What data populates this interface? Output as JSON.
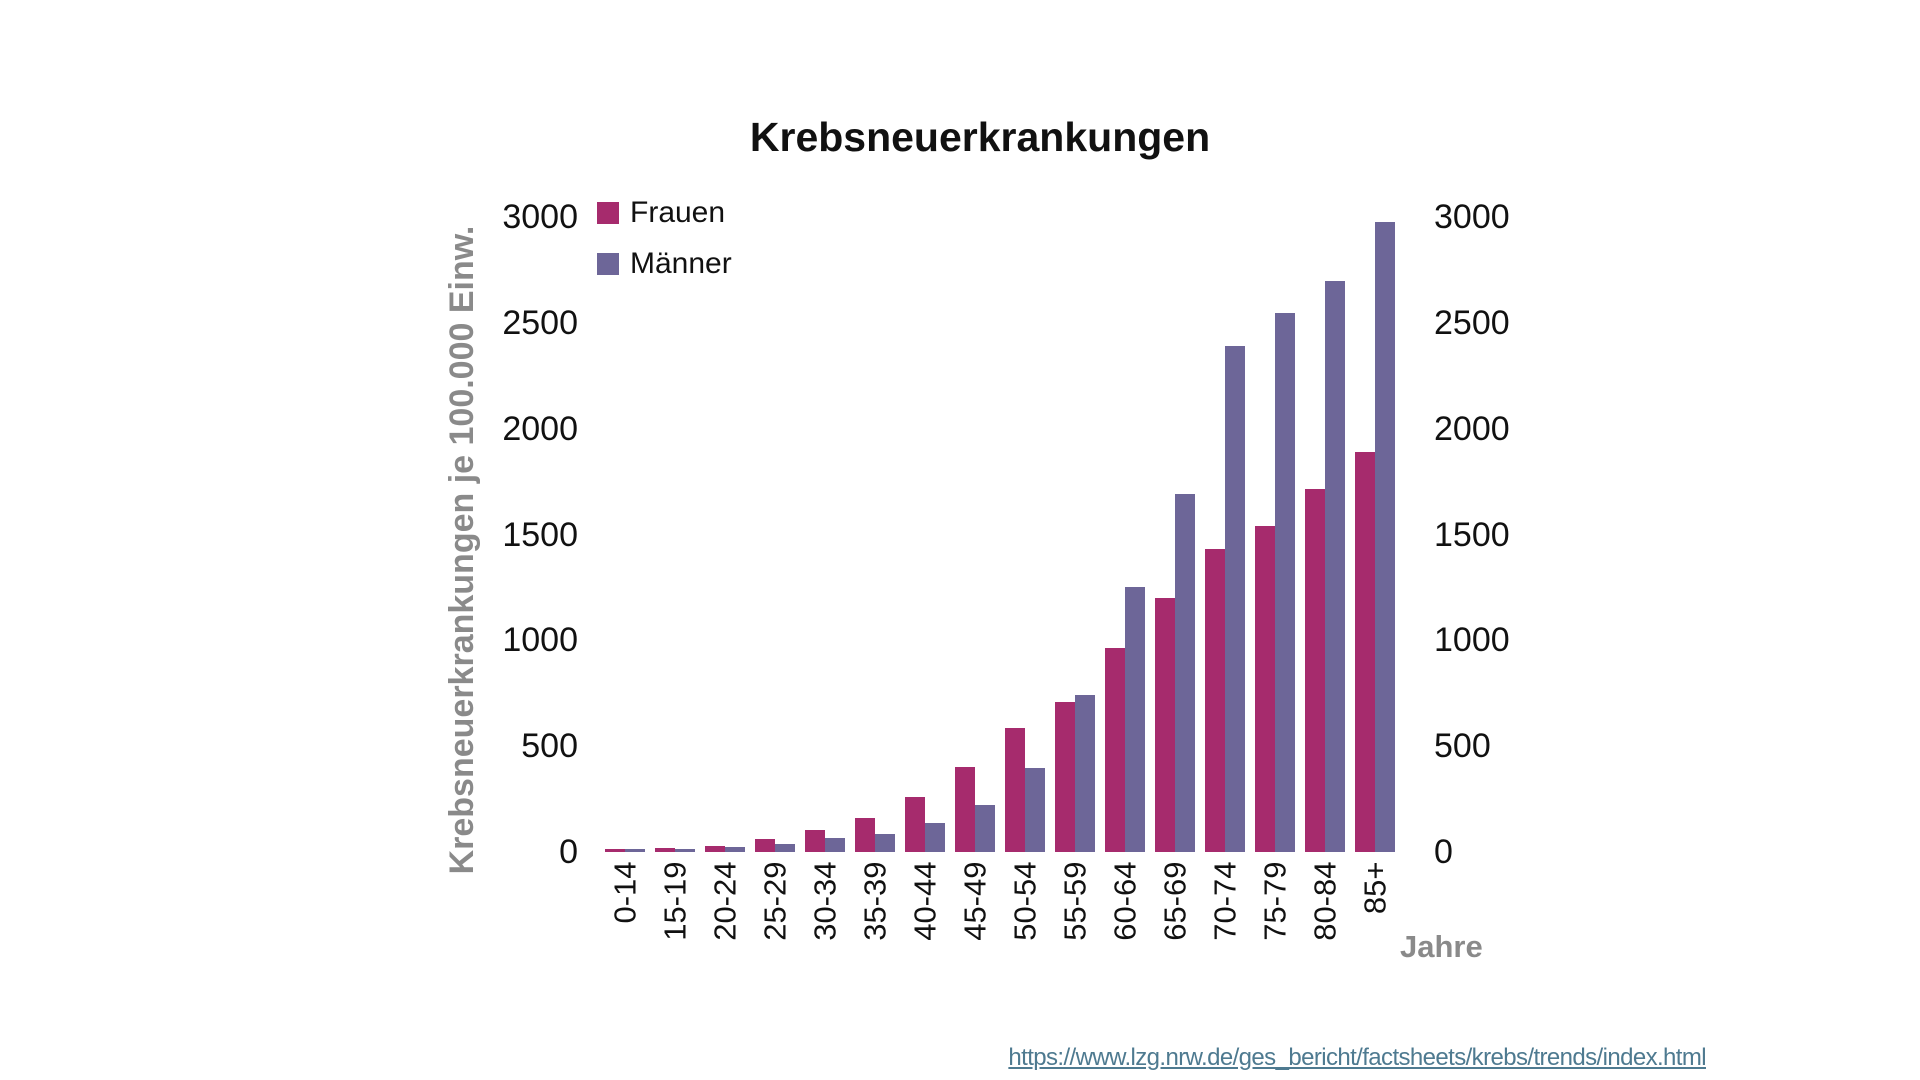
{
  "title": "Krebsneuerkrankungen",
  "y_axis_title": "Krebsneuerkrankungen je 100.000 Einw.",
  "x_axis_title": "Jahre",
  "source_link": {
    "text": "https://www.lzg.nrw.de/ges_bericht/factsheets/krebs/trends/index.html",
    "color": "#4E7A90"
  },
  "colors": {
    "frauen": "#A62B6D",
    "maenner": "#6D6698",
    "axis_text": "#111111",
    "muted_text": "#8a8a8a",
    "background": "#ffffff"
  },
  "chart_data": {
    "type": "bar",
    "title": "Krebsneuerkrankungen",
    "xlabel": "Jahre",
    "ylabel": "Krebsneuerkrankungen je 100.000 Einw.",
    "categories": [
      "0-14",
      "15-19",
      "20-24",
      "25-29",
      "30-34",
      "35-39",
      "40-44",
      "45-49",
      "50-54",
      "55-59",
      "60-64",
      "65-69",
      "70-74",
      "75-79",
      "80-84",
      "85+"
    ],
    "series": [
      {
        "name": "Frauen",
        "color": "#A62B6D",
        "values": [
          12,
          18,
          30,
          60,
          105,
          160,
          260,
          400,
          585,
          710,
          965,
          1200,
          1430,
          1540,
          1715,
          1890
        ]
      },
      {
        "name": "Männer",
        "color": "#6D6698",
        "values": [
          12,
          14,
          25,
          40,
          65,
          85,
          135,
          220,
          395,
          740,
          1250,
          1690,
          2390,
          2545,
          2700,
          2975
        ]
      }
    ],
    "ylim": [
      0,
      3000
    ],
    "yticks": [
      0,
      500,
      1000,
      1500,
      2000,
      2500,
      3000
    ],
    "yticks_both_sides": true,
    "grid": false,
    "legend_position": "top-left-inside"
  }
}
